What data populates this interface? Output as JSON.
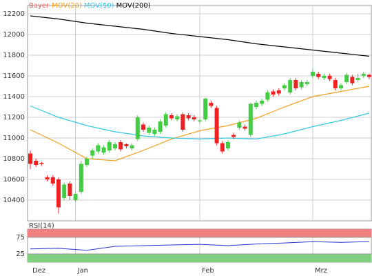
{
  "chart_data": [
    {
      "type": "candlestick",
      "title": "Bayer",
      "title_color": "#e06060",
      "categories": [
        "Dez",
        null,
        null,
        null,
        null,
        null,
        null,
        null,
        "Jan",
        null,
        null,
        null,
        null,
        null,
        null,
        null,
        null,
        null,
        null,
        null,
        null,
        null,
        null,
        null,
        null,
        null,
        null,
        null,
        null,
        null,
        "Feb",
        null,
        null,
        null,
        null,
        null,
        null,
        null,
        null,
        null,
        null,
        null,
        null,
        null,
        null,
        null,
        null,
        null,
        null,
        null,
        "Mrz",
        null,
        null,
        null,
        null,
        null,
        null,
        null,
        null,
        null,
        null
      ],
      "open": [
        10850,
        10780,
        10760,
        10620,
        10620,
        10600,
        10420,
        10560,
        10400,
        10480,
        10740,
        10830,
        10870,
        10860,
        10880,
        10900,
        10960,
        10940,
        10900,
        10990,
        11130,
        11050,
        11040,
        11060,
        11120,
        11220,
        11180,
        11230,
        11220,
        11200,
        11160,
        11180,
        11340,
        11290,
        10950,
        10900,
        11030,
        11100,
        11110,
        11030,
        11300,
        11330,
        11370,
        11450,
        11460,
        11480,
        11440,
        11560,
        11490,
        11520,
        11600,
        11620,
        11580,
        11600,
        11560,
        11480,
        11540,
        11590,
        11560,
        11600,
        11610
      ],
      "high": [
        10880,
        10800,
        10770,
        10640,
        10640,
        10620,
        10570,
        10580,
        10480,
        10780,
        10820,
        10900,
        10950,
        10930,
        10980,
        10960,
        10980,
        10950,
        10950,
        11220,
        11150,
        11120,
        11100,
        11180,
        11250,
        11240,
        11230,
        11250,
        11240,
        11220,
        11190,
        11390,
        11360,
        11310,
        10970,
        10980,
        11050,
        11170,
        11130,
        11340,
        11360,
        11380,
        11460,
        11470,
        11480,
        11530,
        11580,
        11580,
        11560,
        11560,
        11670,
        11640,
        11620,
        11620,
        11580,
        11530,
        11630,
        11610,
        11620,
        11640,
        11620
      ],
      "low": [
        10700,
        10720,
        10730,
        10580,
        10540,
        10270,
        10400,
        10400,
        10380,
        10460,
        10720,
        10800,
        10850,
        10840,
        10860,
        10880,
        10870,
        10900,
        10880,
        10970,
        11060,
        11030,
        11020,
        11040,
        11100,
        11170,
        11160,
        11060,
        11170,
        11160,
        11140,
        11160,
        11290,
        10930,
        10850,
        10880,
        10990,
        11080,
        11070,
        11010,
        11280,
        11310,
        11350,
        11400,
        11410,
        11460,
        11420,
        11460,
        11470,
        11500,
        11580,
        11570,
        11560,
        11550,
        11460,
        11460,
        11520,
        11510,
        11540,
        11580,
        11570
      ],
      "close": [
        10750,
        10740,
        10750,
        10600,
        10560,
        10330,
        10550,
        10440,
        10460,
        10750,
        10800,
        10880,
        10930,
        10910,
        10960,
        10940,
        10890,
        10920,
        10930,
        11200,
        11080,
        11100,
        11080,
        11160,
        11230,
        11190,
        11210,
        11080,
        11190,
        11180,
        11170,
        11380,
        11310,
        10950,
        10870,
        10960,
        11010,
        11150,
        11090,
        11330,
        11340,
        11360,
        11440,
        11420,
        11430,
        11510,
        11560,
        11480,
        11540,
        11540,
        11640,
        11590,
        11600,
        11570,
        11480,
        11510,
        11610,
        11530,
        11580,
        11620,
        11590
      ],
      "up_color": "#44cc44",
      "down_color": "#ee2222",
      "ylim": [
        10200,
        12280
      ],
      "yticks": [
        10400,
        10600,
        10800,
        11000,
        11200,
        11400,
        11600,
        11800,
        12000,
        12200
      ],
      "grid": true,
      "series": [
        {
          "name": "MOV(20)",
          "color": "#f0a020",
          "x": [
            0,
            5,
            10,
            15,
            20,
            25,
            30,
            35,
            40,
            45,
            50,
            55,
            60
          ],
          "values": [
            11080,
            10950,
            10800,
            10780,
            10880,
            10990,
            11070,
            11120,
            11190,
            11300,
            11400,
            11450,
            11500
          ]
        },
        {
          "name": "MOV(50)",
          "color": "#30c8e0",
          "x": [
            0,
            5,
            10,
            15,
            20,
            25,
            30,
            35,
            40,
            45,
            50,
            55,
            60
          ],
          "values": [
            11310,
            11200,
            11120,
            11060,
            11020,
            11000,
            10990,
            11000,
            10990,
            11040,
            11110,
            11170,
            11240
          ]
        },
        {
          "name": "MOV(200)",
          "color": "#000000",
          "x": [
            0,
            5,
            10,
            15,
            20,
            25,
            30,
            35,
            40,
            45,
            50,
            55,
            60
          ],
          "values": [
            12180,
            12150,
            12110,
            12080,
            12050,
            12010,
            11980,
            11950,
            11910,
            11880,
            11850,
            11820,
            11790
          ]
        }
      ]
    },
    {
      "type": "line",
      "title": "RSI(14)",
      "color": "#2233cc",
      "x": [
        0,
        5,
        10,
        15,
        20,
        25,
        30,
        35,
        40,
        45,
        50,
        55,
        60
      ],
      "values": [
        40,
        42,
        36,
        48,
        50,
        52,
        54,
        50,
        55,
        58,
        62,
        60,
        62
      ],
      "ylim": [
        0,
        100
      ],
      "yticks": [
        25,
        75
      ],
      "upper_color": "#f08080",
      "lower_color": "#80d080"
    }
  ]
}
